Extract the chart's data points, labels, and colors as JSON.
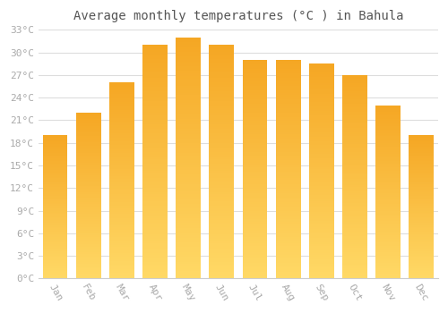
{
  "title": "Average monthly temperatures (°C ) in Bahula",
  "months": [
    "Jan",
    "Feb",
    "Mar",
    "Apr",
    "May",
    "Jun",
    "Jul",
    "Aug",
    "Sep",
    "Oct",
    "Nov",
    "Dec"
  ],
  "temperatures": [
    19,
    22,
    26,
    31,
    32,
    31,
    29,
    29,
    28.5,
    27,
    23,
    19
  ],
  "bar_color_top": "#F5A623",
  "bar_color_bottom": "#FFD966",
  "ylim": [
    0,
    33
  ],
  "yticks": [
    0,
    3,
    6,
    9,
    12,
    15,
    18,
    21,
    24,
    27,
    30,
    33
  ],
  "ylabel_suffix": "°C",
  "background_color": "#ffffff",
  "grid_color": "#dddddd",
  "title_fontsize": 10,
  "tick_fontsize": 8,
  "title_color": "#555555",
  "tick_color": "#aaaaaa",
  "bar_width": 0.75
}
